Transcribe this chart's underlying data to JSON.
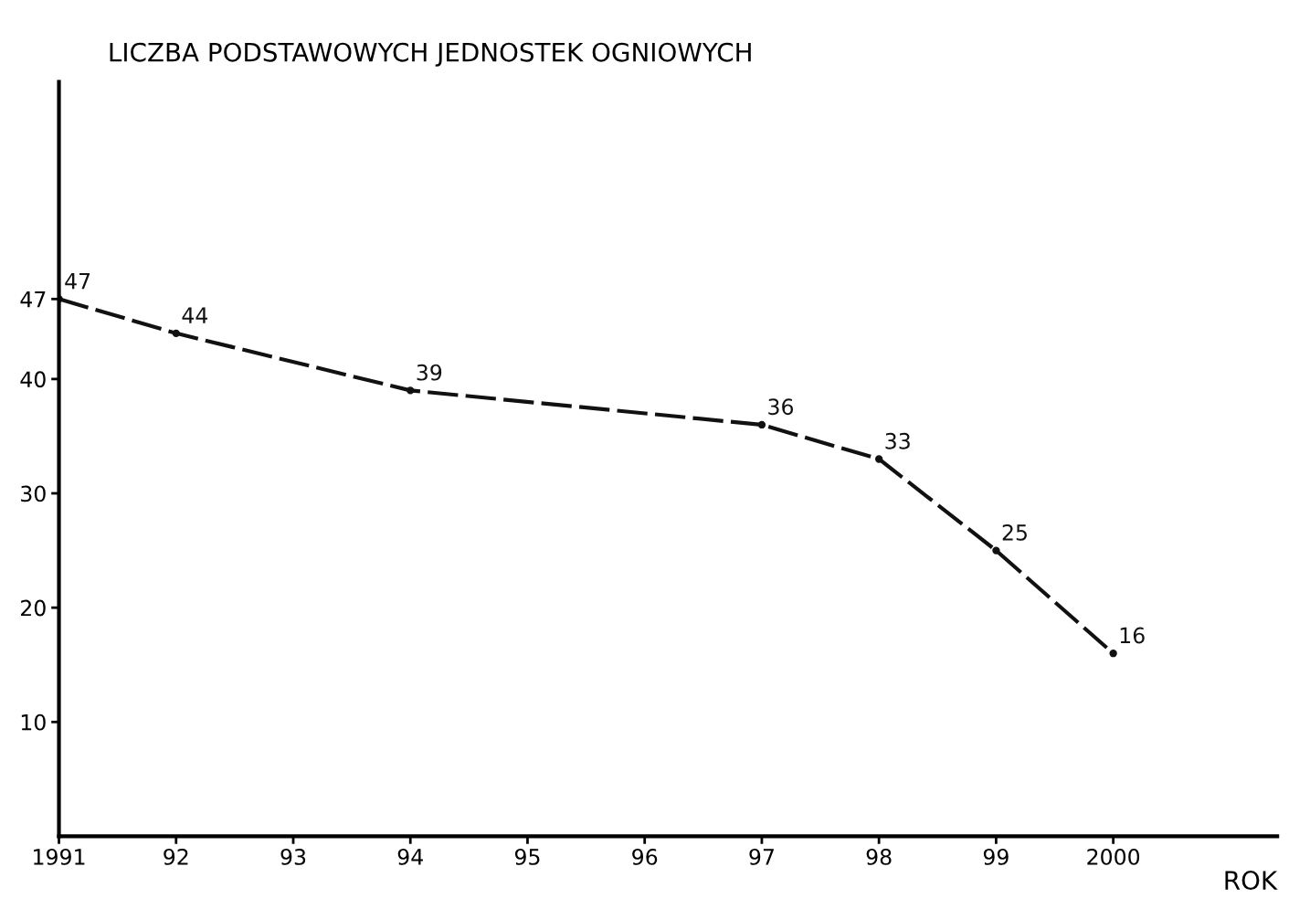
{
  "chart_data": {
    "type": "line",
    "ylabel": "LICZBA PODSTAWOWYCH JEDNOSTEK OGNIOWYCH",
    "xlabel": "ROK",
    "x": [
      1991,
      1992,
      1994,
      1997,
      1998,
      1999,
      2000
    ],
    "values": [
      47,
      44,
      39,
      36,
      33,
      25,
      16
    ],
    "color": "#111111",
    "data_labels": true,
    "marker": "circle",
    "line_style": "dashed",
    "grid": false,
    "xlim": [
      1991,
      2001.4
    ],
    "xticks": [
      1991,
      {
        "value": 1992,
        "label": "92"
      },
      {
        "value": 1993,
        "label": "93"
      },
      {
        "value": 1994,
        "label": "94"
      },
      {
        "value": 1995,
        "label": "95"
      },
      {
        "value": 1996,
        "label": "96"
      },
      {
        "value": 1997,
        "label": "97"
      },
      {
        "value": 1998,
        "label": "98"
      },
      {
        "value": 1999,
        "label": "99"
      },
      2000
    ],
    "ylim": [
      0,
      66
    ],
    "yticks": [
      10,
      20,
      30,
      40,
      47
    ]
  }
}
